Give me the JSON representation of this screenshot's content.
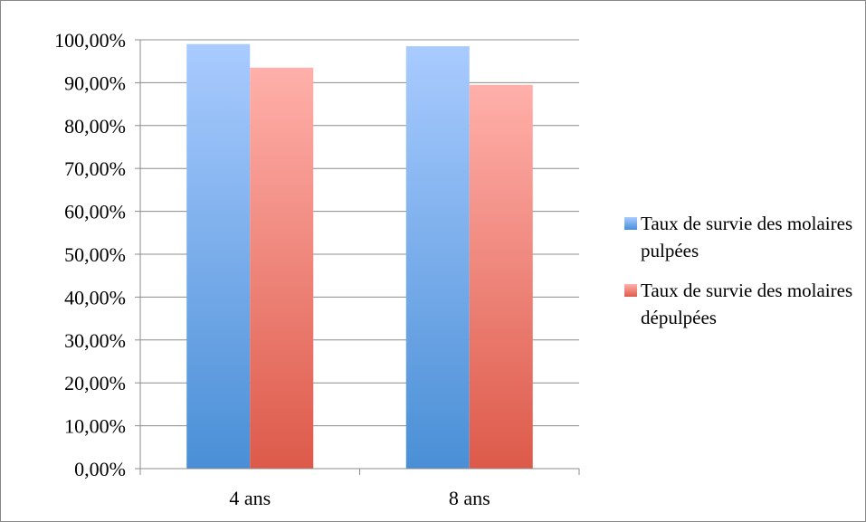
{
  "chart_data": {
    "type": "bar",
    "categories": [
      "4 ans",
      "8 ans"
    ],
    "series": [
      {
        "name": "Taux de survie des molaires pulpées",
        "values": [
          99.0,
          98.5
        ],
        "color_top": "#a9cbff",
        "color_bottom": "#4a8fd6",
        "legend_color": "#4a8fd6"
      },
      {
        "name": "Taux de survie des molaires dépulpées",
        "values": [
          93.5,
          89.5
        ],
        "color_top": "#ffb0aa",
        "color_bottom": "#dd5a4a",
        "legend_color": "#dd5a4a"
      }
    ],
    "y_ticks": [
      "0,00%",
      "10,00%",
      "20,00%",
      "30,00%",
      "40,00%",
      "50,00%",
      "60,00%",
      "70,00%",
      "80,00%",
      "90,00%",
      "100,00%"
    ],
    "ylim": [
      0,
      100
    ],
    "grid": true,
    "legend_position": "right",
    "title": "",
    "xlabel": "",
    "ylabel": ""
  }
}
